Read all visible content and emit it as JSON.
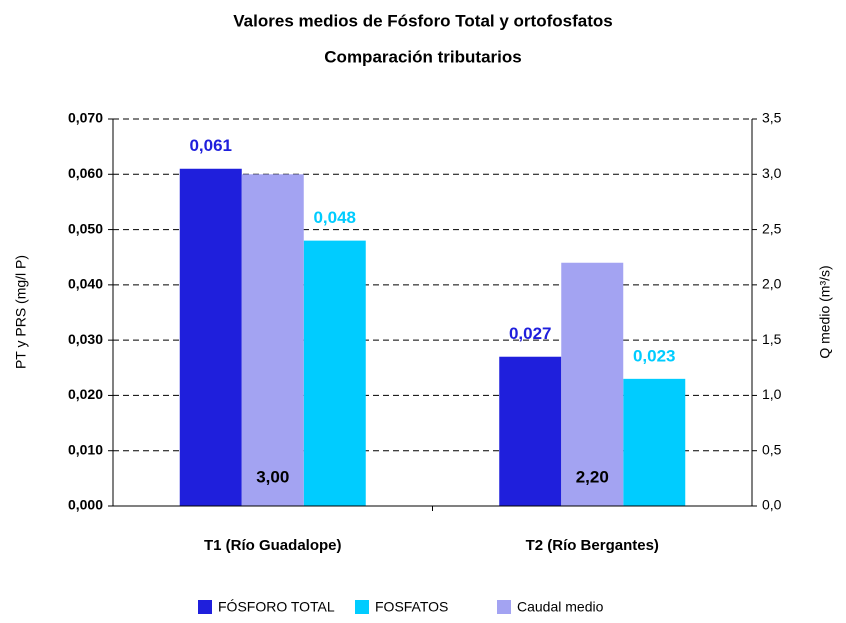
{
  "chart_data": {
    "type": "bar",
    "title": "Valores medios de Fósforo Total y ortofosfatos",
    "subtitle": "Comparación tributarios",
    "y_label": "PT y PRS (mg/l P)",
    "y2_label": "Q medio (m³/s)",
    "categories": [
      "T1 (Río Guadalope)",
      "T2 (Río Bergantes)"
    ],
    "series": [
      {
        "name": "FÓSFORO TOTAL",
        "color": "#1f1fdc",
        "values": [
          0.061,
          0.027
        ],
        "value_labels": [
          "0,061",
          "0,027"
        ],
        "label_color": "#1f1fdc"
      },
      {
        "name": "FOSFATOS",
        "color": "#00ccff",
        "values": [
          0.048,
          0.023
        ],
        "value_labels": [
          "0,048",
          "0,023"
        ],
        "label_color": "#00ccff"
      },
      {
        "name": "Caudal medio",
        "color": "#a3a3f2",
        "values": [
          3.0,
          2.2
        ],
        "value_labels": [
          "3,00",
          "2,20"
        ],
        "axis": "y2",
        "label_color": "#000000"
      }
    ],
    "ylim": [
      0,
      0.07
    ],
    "yticks": [
      {
        "value": 0,
        "label": "0,000"
      },
      {
        "value": 0.01,
        "label": "0,010"
      },
      {
        "value": 0.02,
        "label": "0,020"
      },
      {
        "value": 0.03,
        "label": "0,030"
      },
      {
        "value": 0.04,
        "label": "0,040"
      },
      {
        "value": 0.05,
        "label": "0,050"
      },
      {
        "value": 0.06,
        "label": "0,060"
      },
      {
        "value": 0.07,
        "label": "0,070"
      }
    ],
    "y2lim": [
      0,
      3.5
    ],
    "y2ticks": [
      {
        "value": 0,
        "label": "0,0"
      },
      {
        "value": 0.5,
        "label": "0,5"
      },
      {
        "value": 1,
        "label": "1,0"
      },
      {
        "value": 1.5,
        "label": "1,5"
      },
      {
        "value": 2,
        "label": "2,0"
      },
      {
        "value": 2.5,
        "label": "2,5"
      },
      {
        "value": 3,
        "label": "3,0"
      },
      {
        "value": 3.5,
        "label": "3,5"
      }
    ],
    "grid": true,
    "legend": "bottom"
  }
}
